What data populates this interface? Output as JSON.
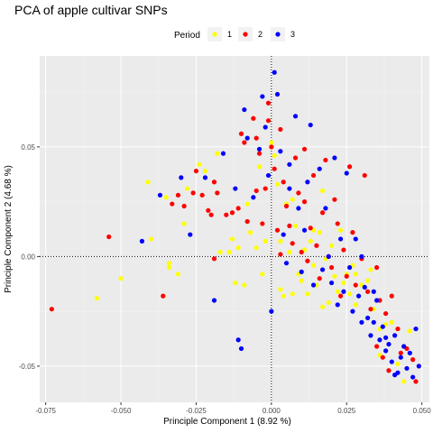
{
  "chart_data": {
    "type": "scatter",
    "title": "PCA of apple cultivar SNPs",
    "xlabel": "Principle Component 1 (8.92 %)",
    "ylabel": "Principle Component 2 (4.68 %)",
    "xlim": [
      -0.077,
      0.0525
    ],
    "ylim": [
      -0.0665,
      0.0915
    ],
    "x_ticks": [
      -0.075,
      -0.05,
      -0.025,
      0.0,
      0.025,
      0.05
    ],
    "x_tick_labels": [
      "-0.075",
      "-0.050",
      "-0.025",
      "0.000",
      "0.025",
      "0.050"
    ],
    "y_ticks": [
      -0.05,
      0.0,
      0.05
    ],
    "y_tick_labels": [
      "-0.05",
      "0.00",
      "0.05"
    ],
    "reference_lines": {
      "x": 0,
      "y": 0,
      "style": "dotted"
    },
    "grid": true,
    "legend": {
      "title": "Period",
      "position": "top"
    },
    "series": [
      {
        "name": "1",
        "color": "#ffff00",
        "points": [
          [
            -0.058,
            -0.019
          ],
          [
            -0.05,
            -0.01
          ],
          [
            -0.041,
            0.034
          ],
          [
            -0.04,
            0.008
          ],
          [
            -0.035,
            0.027
          ],
          [
            -0.034,
            -0.003
          ],
          [
            -0.034,
            -0.005
          ],
          [
            -0.031,
            -0.008
          ],
          [
            -0.028,
            0.031
          ],
          [
            -0.029,
            0.015
          ],
          [
            -0.024,
            0.042
          ],
          [
            -0.022,
            0.039
          ],
          [
            -0.018,
            0.047
          ],
          [
            -0.017,
            0.002
          ],
          [
            -0.014,
            0.002
          ],
          [
            -0.013,
            0.008
          ],
          [
            -0.012,
            -0.012
          ],
          [
            -0.011,
            0.004
          ],
          [
            -0.009,
            -0.013
          ],
          [
            -0.008,
            0.024
          ],
          [
            -0.007,
            0.011
          ],
          [
            -0.005,
            0.004
          ],
          [
            -0.004,
            0.041
          ],
          [
            -0.003,
            -0.008
          ],
          [
            -0.002,
            0.007
          ],
          [
            0.0,
            0.052
          ],
          [
            0.001,
            0.046
          ],
          [
            0.002,
            0.033
          ],
          [
            0.003,
            0.007
          ],
          [
            0.003,
            -0.015
          ],
          [
            0.004,
            -0.018
          ],
          [
            0.005,
            0.024
          ],
          [
            0.006,
            0.002
          ],
          [
            0.007,
            -0.017
          ],
          [
            0.008,
            0.014
          ],
          [
            0.009,
            -0.008
          ],
          [
            0.01,
            -0.011
          ],
          [
            0.011,
            0.003
          ],
          [
            0.012,
            -0.017
          ],
          [
            0.013,
            0.007
          ],
          [
            0.014,
            -0.004
          ],
          [
            0.015,
            -0.013
          ],
          [
            0.016,
            0.011
          ],
          [
            0.017,
            -0.023
          ],
          [
            0.018,
            -0.001
          ],
          [
            0.019,
            -0.021
          ],
          [
            0.02,
            0.005
          ],
          [
            0.021,
            -0.009
          ],
          [
            0.022,
            -0.016
          ],
          [
            0.023,
            0.012
          ],
          [
            0.024,
            -0.012
          ],
          [
            0.025,
            -0.008
          ],
          [
            0.026,
            -0.017
          ],
          [
            0.027,
            -0.004
          ],
          [
            0.028,
            -0.022
          ],
          [
            0.03,
            -0.013
          ],
          [
            0.032,
            -0.011
          ],
          [
            0.034,
            -0.024
          ],
          [
            0.036,
            -0.033
          ],
          [
            0.038,
            -0.031
          ],
          [
            0.04,
            -0.03
          ],
          [
            0.042,
            -0.049
          ],
          [
            0.044,
            -0.057
          ],
          [
            0.046,
            -0.034
          ],
          [
            0.036,
            -0.045
          ],
          [
            0.028,
            -0.008
          ],
          [
            0.033,
            -0.006
          ],
          [
            0.014,
            0.012
          ],
          [
            0.017,
            0.03
          ],
          [
            0.007,
            0.026
          ]
        ]
      },
      {
        "name": "2",
        "color": "#ff0000",
        "points": [
          [
            -0.073,
            -0.024
          ],
          [
            -0.054,
            0.009
          ],
          [
            -0.036,
            -0.018
          ],
          [
            -0.033,
            0.024
          ],
          [
            -0.031,
            0.028
          ],
          [
            -0.029,
            0.023
          ],
          [
            -0.026,
            0.029
          ],
          [
            -0.025,
            0.039
          ],
          [
            -0.023,
            0.028
          ],
          [
            -0.021,
            0.021
          ],
          [
            -0.02,
            0.019
          ],
          [
            -0.019,
            0.034
          ],
          [
            -0.018,
            0.029
          ],
          [
            -0.019,
            -0.001
          ],
          [
            -0.015,
            0.019
          ],
          [
            -0.013,
            0.02
          ],
          [
            -0.011,
            0.022
          ],
          [
            -0.01,
            0.056
          ],
          [
            -0.009,
            0.052
          ],
          [
            -0.008,
            0.016
          ],
          [
            -0.006,
            0.063
          ],
          [
            -0.005,
            0.054
          ],
          [
            -0.005,
            0.03
          ],
          [
            -0.004,
            0.047
          ],
          [
            -0.003,
            0.015
          ],
          [
            -0.002,
            0.031
          ],
          [
            -0.001,
            0.07
          ],
          [
            0.0,
            0.05
          ],
          [
            0.001,
            0.04
          ],
          [
            0.002,
            0.012
          ],
          [
            0.003,
            0.001
          ],
          [
            0.004,
            0.034
          ],
          [
            0.005,
            0.023
          ],
          [
            0.006,
            0.014
          ],
          [
            0.007,
            0.006
          ],
          [
            0.008,
            0.045
          ],
          [
            0.009,
            0.029
          ],
          [
            0.01,
            0.002
          ],
          [
            0.011,
            0.025
          ],
          [
            0.012,
            -0.002
          ],
          [
            0.013,
            0.013
          ],
          [
            0.014,
            0.037
          ],
          [
            0.015,
            0.005
          ],
          [
            0.016,
            -0.01
          ],
          [
            0.017,
            0.02
          ],
          [
            0.018,
            0.044
          ],
          [
            0.019,
            0.0
          ],
          [
            0.02,
            -0.005
          ],
          [
            0.021,
            0.026
          ],
          [
            0.022,
            0.015
          ],
          [
            0.023,
            -0.018
          ],
          [
            0.024,
            0.003
          ],
          [
            0.025,
            -0.009
          ],
          [
            0.026,
            0.041
          ],
          [
            0.027,
            0.011
          ],
          [
            0.028,
            -0.013
          ],
          [
            0.03,
            -0.001
          ],
          [
            0.031,
            0.037
          ],
          [
            0.032,
            -0.016
          ],
          [
            0.033,
            -0.024
          ],
          [
            0.035,
            -0.005
          ],
          [
            0.036,
            -0.02
          ],
          [
            0.038,
            -0.026
          ],
          [
            0.04,
            -0.018
          ],
          [
            0.042,
            -0.033
          ],
          [
            0.043,
            -0.044
          ],
          [
            0.045,
            -0.042
          ],
          [
            0.048,
            -0.057
          ],
          [
            0.047,
            -0.047
          ],
          [
            0.037,
            -0.046
          ],
          [
            0.035,
            -0.041
          ],
          [
            0.039,
            -0.052
          ],
          [
            -0.001,
            0.062
          ],
          [
            0.003,
            0.058
          ],
          [
            0.011,
            0.049
          ]
        ]
      },
      {
        "name": "3",
        "color": "#0000ff",
        "points": [
          [
            -0.043,
            0.007
          ],
          [
            -0.037,
            0.028
          ],
          [
            -0.03,
            0.036
          ],
          [
            -0.027,
            0.01
          ],
          [
            -0.022,
            0.036
          ],
          [
            -0.019,
            -0.02
          ],
          [
            -0.016,
            0.047
          ],
          [
            -0.012,
            0.031
          ],
          [
            -0.011,
            -0.038
          ],
          [
            -0.01,
            -0.042
          ],
          [
            -0.009,
            0.067
          ],
          [
            -0.008,
            0.054
          ],
          [
            -0.006,
            0.027
          ],
          [
            -0.004,
            0.049
          ],
          [
            -0.003,
            0.073
          ],
          [
            -0.002,
            0.059
          ],
          [
            -0.001,
            0.037
          ],
          [
            0.0,
            -0.025
          ],
          [
            0.001,
            0.084
          ],
          [
            0.002,
            0.074
          ],
          [
            0.003,
            0.048
          ],
          [
            0.004,
            0.01
          ],
          [
            0.005,
            -0.003
          ],
          [
            0.006,
            0.042
          ],
          [
            0.008,
            0.064
          ],
          [
            0.009,
            0.022
          ],
          [
            0.01,
            -0.007
          ],
          [
            0.011,
            0.012
          ],
          [
            0.012,
            0.034
          ],
          [
            0.013,
            0.06
          ],
          [
            0.014,
            -0.013
          ],
          [
            0.016,
            0.04
          ],
          [
            0.017,
            -0.006
          ],
          [
            0.018,
            0.022
          ],
          [
            0.019,
            0.0
          ],
          [
            0.02,
            -0.012
          ],
          [
            0.021,
            0.045
          ],
          [
            0.022,
            -0.022
          ],
          [
            0.023,
            0.008
          ],
          [
            0.024,
            -0.016
          ],
          [
            0.025,
            0.038
          ],
          [
            0.026,
            -0.005
          ],
          [
            0.027,
            -0.025
          ],
          [
            0.028,
            0.008
          ],
          [
            0.029,
            -0.018
          ],
          [
            0.03,
            -0.03
          ],
          [
            0.031,
            -0.014
          ],
          [
            0.032,
            -0.028
          ],
          [
            0.033,
            -0.036
          ],
          [
            0.034,
            -0.03
          ],
          [
            0.035,
            -0.02
          ],
          [
            0.036,
            -0.038
          ],
          [
            0.037,
            -0.032
          ],
          [
            0.038,
            -0.043
          ],
          [
            0.039,
            -0.04
          ],
          [
            0.04,
            -0.048
          ],
          [
            0.041,
            -0.036
          ],
          [
            0.042,
            -0.053
          ],
          [
            0.043,
            -0.046
          ],
          [
            0.044,
            -0.041
          ],
          [
            0.045,
            -0.051
          ],
          [
            0.046,
            -0.044
          ],
          [
            0.047,
            -0.055
          ],
          [
            0.048,
            -0.033
          ],
          [
            0.049,
            -0.05
          ],
          [
            0.041,
            -0.054
          ],
          [
            0.038,
            -0.037
          ],
          [
            0.034,
            -0.016
          ],
          [
            0.03,
            0.0
          ],
          [
            0.006,
            0.031
          ]
        ]
      }
    ]
  }
}
